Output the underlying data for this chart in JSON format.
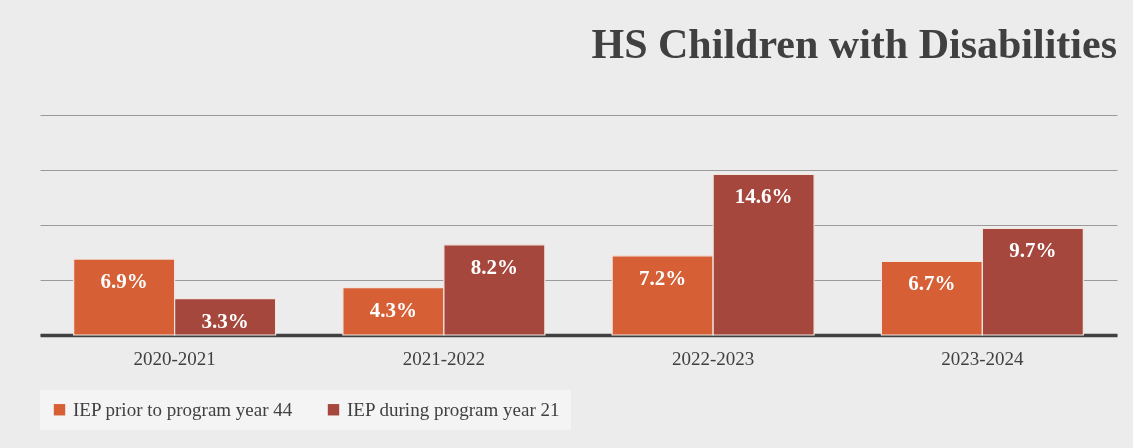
{
  "chart_data": {
    "type": "bar",
    "title": "HS Children with Disabilities",
    "categories": [
      "2020-2021",
      "2021-2022",
      "2022-2023",
      "2023-2024"
    ],
    "series": [
      {
        "name": "IEP prior to program year 44",
        "color": "#d65f36",
        "values": [
          6.9,
          4.3,
          7.2,
          6.7
        ],
        "value_labels": [
          "6.9%",
          "4.3%",
          "7.2%",
          "6.7%"
        ]
      },
      {
        "name": "IEP during program year 21",
        "color": "#a5473d",
        "values": [
          3.3,
          8.2,
          14.6,
          9.7
        ],
        "value_labels": [
          "3.3%",
          "8.2%",
          "14.6%",
          "9.7%"
        ]
      }
    ],
    "ylim": [
      0,
      20
    ],
    "yticks": [
      {
        "value": 0,
        "label": null
      },
      {
        "value": 5,
        "label": null
      },
      {
        "value": 10,
        "label": null
      },
      {
        "value": 15,
        "label": null
      },
      {
        "value": 20,
        "label": null
      }
    ],
    "grid": "y",
    "legend": "bottom",
    "tick_labels": "x"
  }
}
